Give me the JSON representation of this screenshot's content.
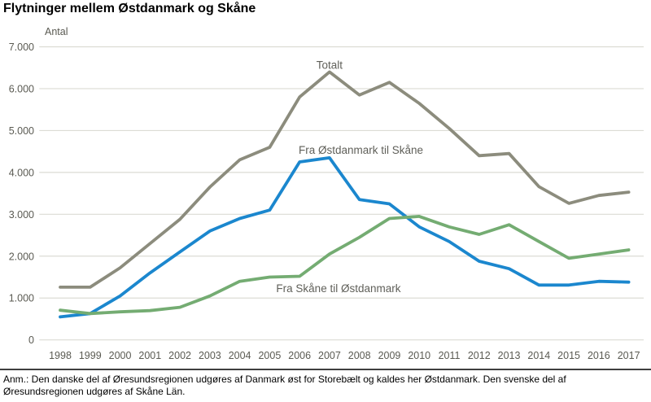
{
  "title": "Flytninger mellem Østdanmark og Skåne",
  "footnote": "Anm.: Den danske del af Øresundsregionen udgøres af Danmark øst for Storebælt og kaldes her Østdanmark. Den svenske del af Øresundsregionen udgøres af Skåne Län.",
  "colors": {
    "total_line": "#8C8C7D",
    "east_to_skane_line": "#1B87CE",
    "skane_to_east_line": "#74AC72",
    "axis_text": "#5A5A52",
    "series_label_text": "#60605A",
    "gridline": "#DCDCD4",
    "divider": "#3F3F3F",
    "title_text": "#000000"
  },
  "chart_data": {
    "type": "line",
    "title": "Flytninger mellem Østdanmark og Skåne",
    "y_axis_label": "Antal",
    "ylim": [
      0,
      7000
    ],
    "y_tick_step": 1000,
    "y_tick_labels": [
      "0",
      "1.000",
      "2.000",
      "3.000",
      "4.000",
      "5.000",
      "6.000",
      "7.000"
    ],
    "grid": true,
    "legend_position": "inline-labels",
    "x": [
      1998,
      1999,
      2000,
      2001,
      2002,
      2003,
      2004,
      2005,
      2006,
      2007,
      2008,
      2009,
      2010,
      2011,
      2012,
      2013,
      2014,
      2015,
      2016,
      2017
    ],
    "series": [
      {
        "name": "Totalt",
        "color": "#8C8C7D",
        "values": [
          1260,
          1260,
          1720,
          2300,
          2880,
          3650,
          4300,
          4600,
          5800,
          6400,
          5850,
          6150,
          5650,
          5050,
          4400,
          4450,
          3660,
          3260,
          3450,
          3530
        ],
        "label_pos": {
          "year": 2007.0,
          "value": 6480,
          "anchor": "middle"
        }
      },
      {
        "name": "Fra Østdanmark til Skåne",
        "color": "#1B87CE",
        "values": [
          550,
          630,
          1050,
          1600,
          2100,
          2600,
          2900,
          3100,
          4250,
          4350,
          3350,
          3250,
          2700,
          2350,
          1880,
          1700,
          1310,
          1310,
          1400,
          1380
        ],
        "label_pos": {
          "year": 2008.05,
          "value": 4440,
          "anchor": "middle"
        }
      },
      {
        "name": "Fra Skåne til Østdanmark",
        "color": "#74AC72",
        "values": [
          710,
          630,
          670,
          700,
          780,
          1050,
          1400,
          1500,
          1520,
          2050,
          2450,
          2900,
          2950,
          2700,
          2520,
          2750,
          2350,
          1950,
          2050,
          2150
        ],
        "label_pos": {
          "year": 2007.3,
          "value": 1140,
          "anchor": "middle"
        }
      }
    ]
  }
}
